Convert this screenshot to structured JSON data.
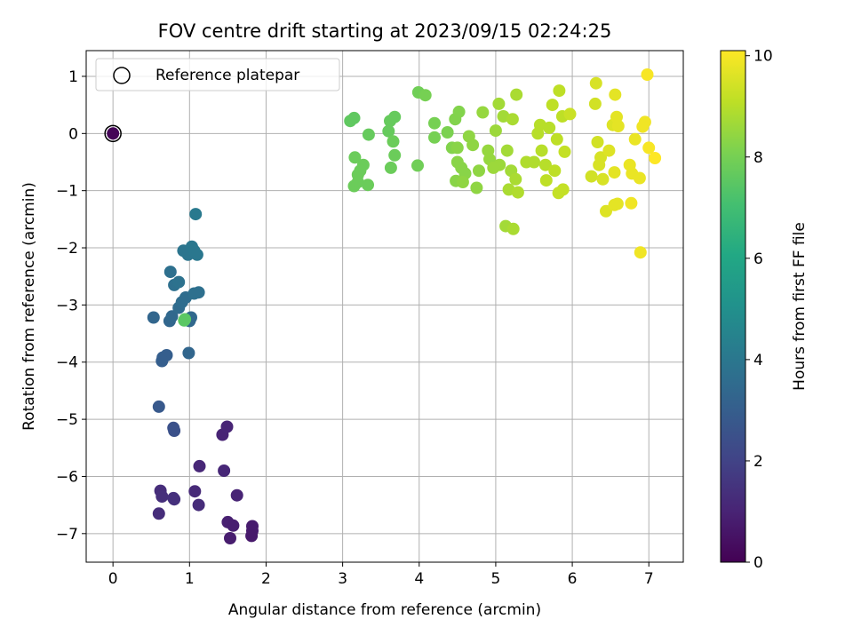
{
  "chart_data": {
    "type": "scatter",
    "title": "FOV centre drift starting at 2023/09/15 02:24:25",
    "xlabel": "Angular distance from reference (arcmin)",
    "ylabel": "Rotation from reference (arcmin)",
    "xlim": [
      -0.35,
      7.45
    ],
    "ylim": [
      -7.5,
      1.45
    ],
    "xticks": [
      0,
      1,
      2,
      3,
      4,
      5,
      6,
      7
    ],
    "xtick_labels": [
      "0",
      "1",
      "2",
      "3",
      "4",
      "5",
      "6",
      "7"
    ],
    "yticks": [
      1,
      0,
      -1,
      -2,
      -3,
      -4,
      -5,
      -6,
      -7
    ],
    "ytick_labels": [
      "1",
      "0",
      "−1",
      "−2",
      "−3",
      "−4",
      "−5",
      "−6",
      "−7"
    ],
    "grid": true,
    "legend": {
      "position": "top-left",
      "entries": [
        {
          "label": "Reference platepar",
          "marker": "hollow-circle"
        }
      ]
    },
    "reference_point": {
      "x": 0,
      "y": 0
    },
    "colorbar": {
      "label": "Hours from first FF file",
      "colormap": "viridis",
      "range": [
        0,
        10.1
      ],
      "ticks": [
        0,
        2,
        4,
        6,
        8,
        10
      ],
      "tick_labels": [
        "0",
        "2",
        "4",
        "6",
        "8",
        "10"
      ]
    },
    "series": [
      {
        "points": [
          [
            0.0,
            0.0,
            0.1
          ],
          [
            0.6,
            -6.65,
            1.3
          ],
          [
            0.62,
            -6.25,
            1.3
          ],
          [
            0.64,
            -6.35,
            1.35
          ],
          [
            0.8,
            -6.4,
            1.4
          ],
          [
            0.79,
            -6.38,
            1.4
          ],
          [
            1.07,
            -6.26,
            1.2
          ],
          [
            1.12,
            -6.5,
            1.25
          ],
          [
            1.13,
            -5.82,
            1.1
          ],
          [
            1.45,
            -5.9,
            1.1
          ],
          [
            1.62,
            -6.33,
            1.0
          ],
          [
            1.5,
            -6.8,
            0.9
          ],
          [
            1.57,
            -6.86,
            0.85
          ],
          [
            1.53,
            -7.08,
            0.8
          ],
          [
            1.82,
            -6.87,
            0.75
          ],
          [
            1.82,
            -6.95,
            0.75
          ],
          [
            1.81,
            -7.04,
            0.7
          ],
          [
            1.43,
            -5.27,
            1.0
          ],
          [
            1.49,
            -5.13,
            1.05
          ],
          [
            0.6,
            -4.78,
            2.8
          ],
          [
            0.79,
            -5.15,
            2.5
          ],
          [
            0.8,
            -5.2,
            2.5
          ],
          [
            0.65,
            -3.92,
            3.0
          ],
          [
            0.7,
            -3.88,
            3.0
          ],
          [
            0.64,
            -3.98,
            3.0
          ],
          [
            0.99,
            -3.84,
            3.3
          ],
          [
            0.53,
            -3.22,
            3.3
          ],
          [
            0.74,
            -3.28,
            3.3
          ],
          [
            0.77,
            -3.2,
            3.4
          ],
          [
            0.86,
            -3.05,
            3.5
          ],
          [
            0.9,
            -2.95,
            3.6
          ],
          [
            0.95,
            -2.87,
            3.6
          ],
          [
            1.02,
            -3.22,
            3.4
          ],
          [
            1.0,
            -3.28,
            3.4
          ],
          [
            1.06,
            -2.8,
            3.7
          ],
          [
            1.12,
            -2.78,
            3.7
          ],
          [
            0.75,
            -2.42,
            3.7
          ],
          [
            0.8,
            -2.65,
            3.7
          ],
          [
            0.86,
            -2.6,
            3.8
          ],
          [
            0.92,
            -2.05,
            3.9
          ],
          [
            0.98,
            -2.12,
            3.9
          ],
          [
            1.03,
            -1.98,
            4.0
          ],
          [
            1.06,
            -2.05,
            4.0
          ],
          [
            1.1,
            -2.12,
            4.0
          ],
          [
            1.08,
            -1.41,
            4.1
          ],
          [
            0.93,
            -3.27,
            7.5
          ],
          [
            0.94,
            -3.25,
            7.5
          ],
          [
            3.1,
            0.22,
            7.6
          ],
          [
            3.15,
            0.27,
            7.6
          ],
          [
            3.34,
            -0.02,
            7.7
          ],
          [
            3.62,
            0.22,
            7.7
          ],
          [
            3.68,
            0.29,
            7.7
          ],
          [
            3.6,
            0.04,
            7.7
          ],
          [
            3.66,
            -0.14,
            7.8
          ],
          [
            3.68,
            -0.38,
            7.8
          ],
          [
            3.63,
            -0.6,
            7.8
          ],
          [
            3.27,
            -0.55,
            7.8
          ],
          [
            3.23,
            -0.65,
            7.8
          ],
          [
            3.2,
            -0.72,
            7.8
          ],
          [
            3.15,
            -0.92,
            7.8
          ],
          [
            3.2,
            -0.85,
            7.8
          ],
          [
            3.33,
            -0.9,
            7.8
          ],
          [
            3.16,
            -0.42,
            7.8
          ],
          [
            3.98,
            -0.56,
            7.9
          ],
          [
            3.99,
            0.72,
            7.9
          ],
          [
            4.08,
            0.67,
            8.0
          ],
          [
            4.2,
            0.18,
            8.0
          ],
          [
            4.2,
            -0.07,
            8.0
          ],
          [
            4.37,
            0.02,
            8.1
          ],
          [
            4.47,
            0.25,
            8.2
          ],
          [
            4.52,
            0.38,
            8.2
          ],
          [
            4.43,
            -0.25,
            8.2
          ],
          [
            4.5,
            -0.5,
            8.3
          ],
          [
            4.55,
            -0.6,
            8.3
          ],
          [
            4.6,
            -0.7,
            8.3
          ],
          [
            4.5,
            -0.25,
            8.3
          ],
          [
            4.48,
            -0.83,
            8.3
          ],
          [
            4.57,
            -0.85,
            8.4
          ],
          [
            4.65,
            -0.05,
            8.4
          ],
          [
            4.7,
            -0.2,
            8.4
          ],
          [
            4.78,
            -0.65,
            8.4
          ],
          [
            4.75,
            -0.95,
            8.4
          ],
          [
            4.83,
            0.37,
            8.5
          ],
          [
            4.9,
            -0.3,
            8.5
          ],
          [
            4.92,
            -0.45,
            8.5
          ],
          [
            5.0,
            0.05,
            8.6
          ],
          [
            5.05,
            -0.55,
            8.6
          ],
          [
            4.97,
            -0.6,
            8.6
          ],
          [
            5.04,
            0.52,
            8.7
          ],
          [
            5.1,
            0.3,
            8.7
          ],
          [
            5.15,
            -0.3,
            8.7
          ],
          [
            5.2,
            -0.65,
            8.7
          ],
          [
            5.13,
            -1.62,
            8.7
          ],
          [
            5.23,
            -1.67,
            8.8
          ],
          [
            5.17,
            -0.98,
            8.8
          ],
          [
            5.26,
            -0.8,
            8.8
          ],
          [
            5.22,
            0.25,
            8.8
          ],
          [
            5.27,
            0.68,
            8.8
          ],
          [
            5.29,
            -1.03,
            8.9
          ],
          [
            5.4,
            -0.5,
            8.9
          ],
          [
            5.5,
            -0.5,
            8.9
          ],
          [
            5.55,
            0.0,
            9.0
          ],
          [
            5.58,
            0.15,
            9.0
          ],
          [
            5.6,
            -0.3,
            9.0
          ],
          [
            5.65,
            -0.55,
            9.0
          ],
          [
            5.7,
            0.1,
            9.0
          ],
          [
            5.74,
            0.5,
            9.1
          ],
          [
            5.8,
            -0.1,
            9.1
          ],
          [
            5.83,
            0.75,
            9.1
          ],
          [
            5.87,
            0.3,
            9.1
          ],
          [
            5.77,
            -0.65,
            9.1
          ],
          [
            5.66,
            -0.82,
            9.1
          ],
          [
            5.9,
            -0.32,
            9.2
          ],
          [
            5.88,
            -0.98,
            9.2
          ],
          [
            5.82,
            -1.04,
            9.2
          ],
          [
            5.97,
            0.34,
            9.3
          ],
          [
            6.25,
            -0.75,
            9.4
          ],
          [
            6.3,
            0.52,
            9.4
          ],
          [
            6.33,
            -0.15,
            9.4
          ],
          [
            6.31,
            0.88,
            9.5
          ],
          [
            6.37,
            -0.42,
            9.5
          ],
          [
            6.35,
            -0.55,
            9.5
          ],
          [
            6.4,
            -0.8,
            9.5
          ],
          [
            6.44,
            -1.36,
            9.6
          ],
          [
            6.48,
            -0.3,
            9.6
          ],
          [
            6.53,
            0.15,
            9.6
          ],
          [
            6.56,
            0.68,
            9.7
          ],
          [
            6.58,
            0.29,
            9.7
          ],
          [
            6.6,
            0.13,
            9.7
          ],
          [
            6.55,
            -0.68,
            9.7
          ],
          [
            6.59,
            -1.23,
            9.7
          ],
          [
            6.55,
            -1.25,
            9.7
          ],
          [
            6.75,
            -0.55,
            9.8
          ],
          [
            6.78,
            -0.7,
            9.8
          ],
          [
            6.82,
            -0.1,
            9.8
          ],
          [
            6.88,
            -0.78,
            9.8
          ],
          [
            6.77,
            -1.22,
            9.9
          ],
          [
            6.89,
            -2.08,
            9.9
          ],
          [
            6.95,
            0.2,
            9.9
          ],
          [
            6.92,
            0.12,
            9.9
          ],
          [
            6.98,
            1.03,
            10.0
          ],
          [
            7.0,
            -0.25,
            10.0
          ],
          [
            7.08,
            -0.43,
            10.1
          ]
        ]
      }
    ]
  }
}
